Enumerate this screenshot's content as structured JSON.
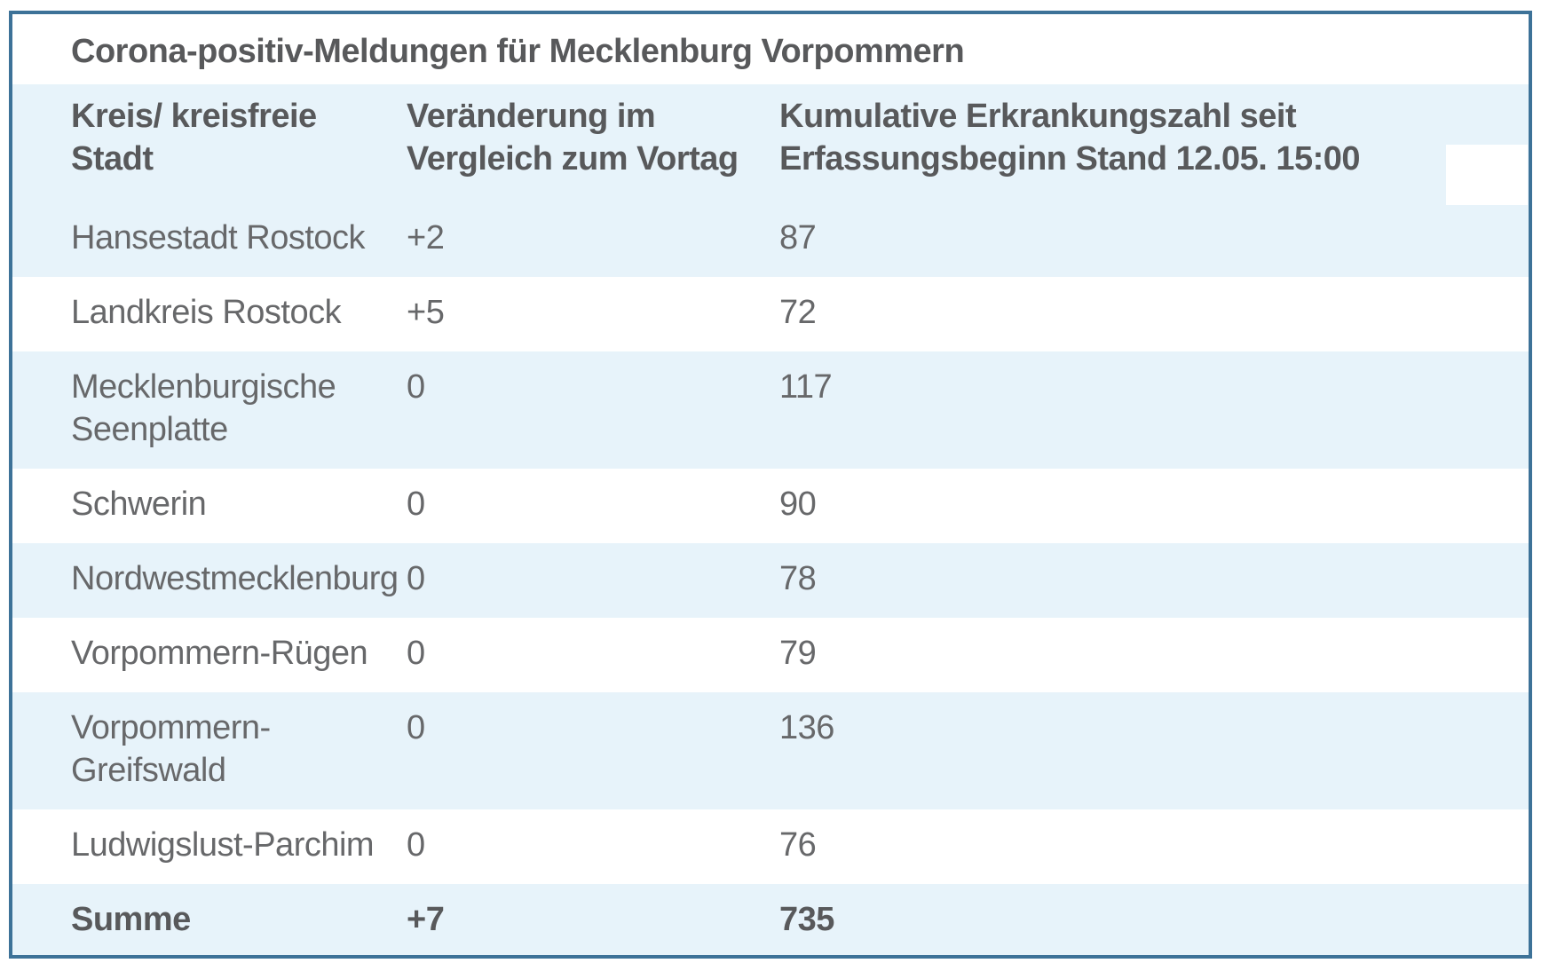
{
  "title": "Corona-positiv-Meldungen für Mecklenburg Vorpommern",
  "colors": {
    "frame_border": "#3d7298",
    "row_highlight": "#e7f3fa",
    "row_plain": "#ffffff",
    "text_regular": "#67686a",
    "text_bold": "#58595b"
  },
  "table": {
    "columns": [
      {
        "lines": [
          "Kreis/ kreisfreie Stadt"
        ]
      },
      {
        "lines": [
          "Veränderung im",
          "Vergleich zum Vortag"
        ]
      },
      {
        "lines": [
          "Kumulative Erkrankungszahl seit",
          "Erfassungsbeginn Stand 12.05. 15:00"
        ]
      }
    ],
    "rows": [
      {
        "name_lines": [
          "Hansestadt Rostock"
        ],
        "change": "+2",
        "cumulative": "87",
        "bold": false
      },
      {
        "name_lines": [
          "Landkreis Rostock"
        ],
        "change": "+5",
        "cumulative": "72",
        "bold": false
      },
      {
        "name_lines": [
          "Mecklenburgische",
          "Seenplatte"
        ],
        "change": "0",
        "cumulative": "117",
        "bold": false
      },
      {
        "name_lines": [
          "Schwerin"
        ],
        "change": "0",
        "cumulative": "90",
        "bold": false
      },
      {
        "name_lines": [
          "Nordwestmecklenburg"
        ],
        "change": "0",
        "cumulative": "78",
        "bold": false
      },
      {
        "name_lines": [
          "Vorpommern-Rügen"
        ],
        "change": "0",
        "cumulative": "79",
        "bold": false
      },
      {
        "name_lines": [
          "Vorpommern-",
          "Greifswald"
        ],
        "change": "0",
        "cumulative": "136",
        "bold": false
      },
      {
        "name_lines": [
          "Ludwigslust-Parchim"
        ],
        "change": "0",
        "cumulative": "76",
        "bold": false
      },
      {
        "name_lines": [
          "Summe"
        ],
        "change": "+7",
        "cumulative": "735",
        "bold": true
      }
    ]
  },
  "chart_data": {
    "type": "table",
    "title": "Corona-positiv-Meldungen für Mecklenburg Vorpommern",
    "columns": [
      "Kreis/ kreisfreie Stadt",
      "Veränderung im Vergleich zum Vortag",
      "Kumulative Erkrankungszahl seit Erfassungsbeginn Stand 12.05. 15:00"
    ],
    "rows": [
      [
        "Hansestadt Rostock",
        "+2",
        87
      ],
      [
        "Landkreis Rostock",
        "+5",
        72
      ],
      [
        "Mecklenburgische Seenplatte",
        "0",
        117
      ],
      [
        "Schwerin",
        "0",
        90
      ],
      [
        "Nordwestmecklenburg",
        "0",
        78
      ],
      [
        "Vorpommern-Rügen",
        "0",
        79
      ],
      [
        "Vorpommern-Greifswald",
        "0",
        136
      ],
      [
        "Ludwigslust-Parchim",
        "0",
        76
      ],
      [
        "Summe",
        "+7",
        735
      ]
    ]
  }
}
